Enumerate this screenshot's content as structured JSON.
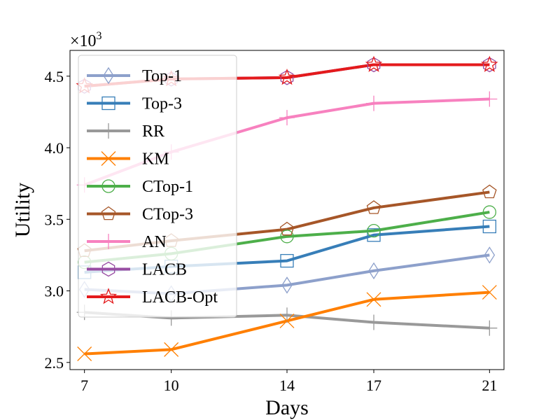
{
  "chart_data": {
    "type": "line",
    "xlabel": "Days",
    "ylabel": "Utility",
    "y_multiplier_label": "×10",
    "y_multiplier_exponent": "3",
    "x": [
      7,
      10,
      14,
      17,
      21
    ],
    "x_tick_labels": [
      "7",
      "10",
      "14",
      "17",
      "21"
    ],
    "ylim": [
      2.45,
      4.68
    ],
    "y_ticks": [
      2.5,
      3.0,
      3.5,
      4.0,
      4.5
    ],
    "y_tick_labels": [
      "2.5",
      "3.0",
      "3.5",
      "4.0",
      "4.5"
    ],
    "legend_position": "upper-left",
    "series": [
      {
        "name": "Top-1",
        "color": "#8da0cb",
        "marker": "diamond",
        "values": [
          3.01,
          2.98,
          3.04,
          3.14,
          3.25
        ]
      },
      {
        "name": "Top-3",
        "color": "#377eb8",
        "marker": "square",
        "values": [
          3.13,
          3.17,
          3.21,
          3.39,
          3.45
        ]
      },
      {
        "name": "RR",
        "color": "#999999",
        "marker": "plus",
        "values": [
          2.85,
          2.81,
          2.83,
          2.78,
          2.74
        ]
      },
      {
        "name": "KM",
        "color": "#ff7f00",
        "marker": "x",
        "values": [
          2.56,
          2.59,
          2.79,
          2.94,
          2.99
        ]
      },
      {
        "name": "CTop-1",
        "color": "#4daf4a",
        "marker": "circle",
        "values": [
          3.2,
          3.26,
          3.38,
          3.42,
          3.55
        ]
      },
      {
        "name": "CTop-3",
        "color": "#a65628",
        "marker": "pentagon",
        "values": [
          3.28,
          3.35,
          3.43,
          3.58,
          3.69
        ]
      },
      {
        "name": "AN",
        "color": "#f781bf",
        "marker": "plus",
        "values": [
          3.74,
          3.97,
          4.21,
          4.31,
          4.34
        ]
      },
      {
        "name": "LACB",
        "color": "#984ea3",
        "marker": "hexagon",
        "values": [
          4.43,
          4.48,
          4.49,
          4.58,
          4.58
        ]
      },
      {
        "name": "LACB-Opt",
        "color": "#e41a1c",
        "marker": "star",
        "values": [
          4.43,
          4.48,
          4.49,
          4.58,
          4.58
        ]
      }
    ]
  }
}
